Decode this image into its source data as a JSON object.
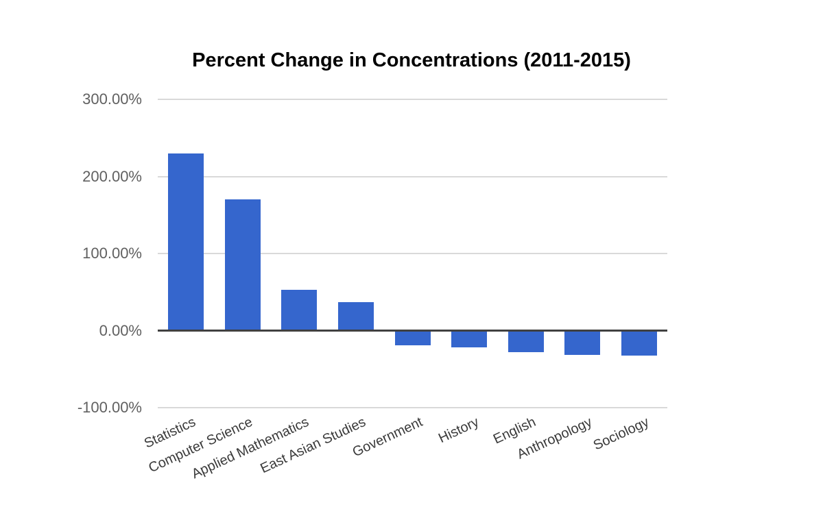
{
  "page": {
    "background_color": "#ffffff"
  },
  "chart_data": {
    "type": "bar",
    "title": "Percent Change in Concentrations (2011-2015)",
    "categories": [
      "Statistics",
      "Computer Science",
      "Applied Mathematics",
      "East Asian Studies",
      "Government",
      "History",
      "English",
      "Anthropology",
      "Sociology"
    ],
    "values": [
      230,
      170,
      53,
      37,
      -18,
      -20,
      -27,
      -30,
      -31
    ],
    "value_unit": "percent",
    "xlabel": "",
    "ylabel": "",
    "ylim": [
      -100,
      300
    ],
    "y_ticks": [
      {
        "value": 300,
        "label": "300.00%"
      },
      {
        "value": 200,
        "label": "200.00%"
      },
      {
        "value": 100,
        "label": "100.00%"
      },
      {
        "value": 0,
        "label": "0.00%"
      },
      {
        "value": -100,
        "label": "-100.00%"
      }
    ],
    "grid": true,
    "legend_position": "none",
    "colors": {
      "bar": "#3566cd",
      "gridline": "#d9d9d9",
      "zero_axis": "#404040",
      "title_text": "#000000",
      "y_label_text": "#606060",
      "x_label_text": "#3a3a3a"
    }
  }
}
